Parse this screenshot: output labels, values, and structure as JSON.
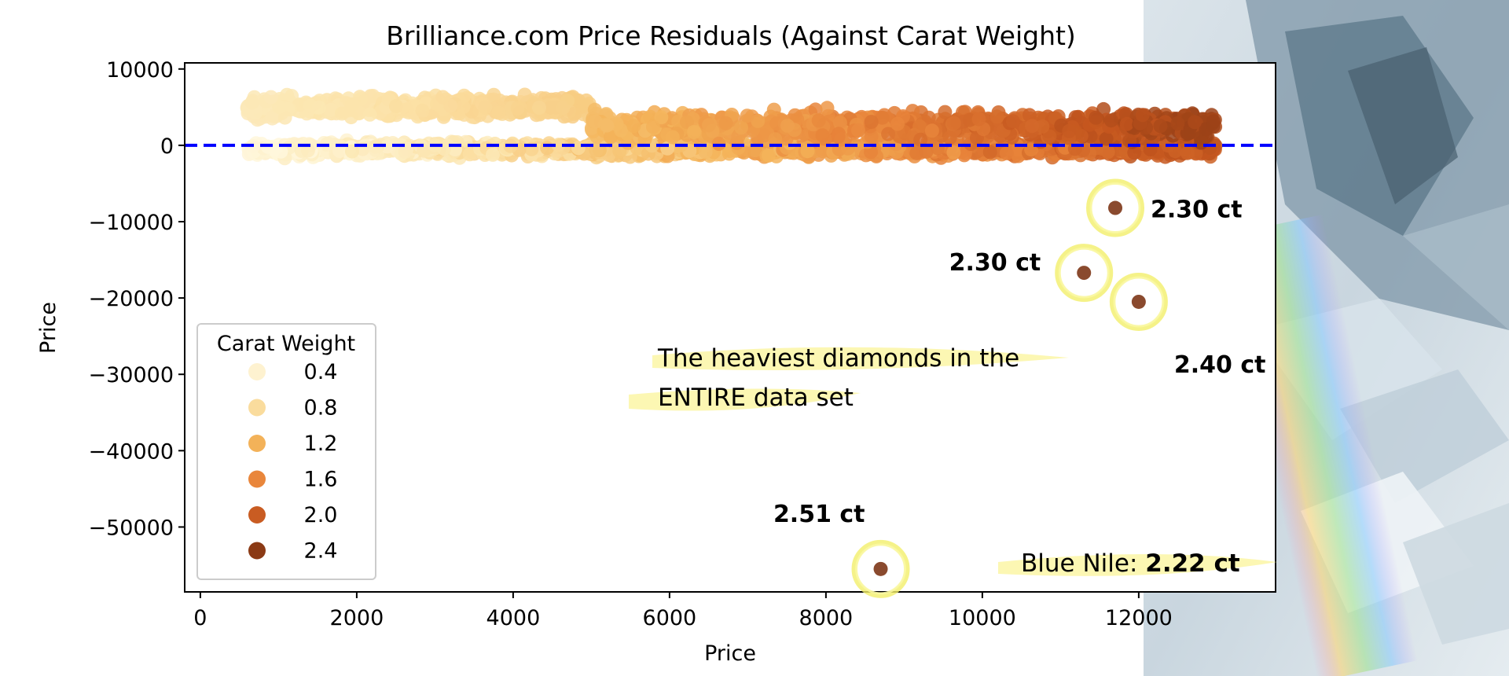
{
  "chart_data": {
    "type": "scatter",
    "title": "Brilliance.com Price Residuals (Against Carat Weight)",
    "xlabel": "Price",
    "ylabel": "Price",
    "xlim": [
      -200,
      13750
    ],
    "ylim": [
      -58500,
      10800
    ],
    "xticks": [
      0,
      2000,
      4000,
      6000,
      8000,
      10000,
      12000
    ],
    "yticks": [
      10000,
      0,
      -10000,
      -20000,
      -30000,
      -40000,
      -50000
    ],
    "tick_labels_x": [
      "0",
      "2000",
      "4000",
      "6000",
      "8000",
      "10000",
      "12000"
    ],
    "tick_labels_y": [
      "10000",
      "0",
      "−10000",
      "−20000",
      "−30000",
      "−40000",
      "−50000"
    ],
    "reference_line": {
      "y": 0,
      "style": "dashed",
      "color": "#0000ff"
    },
    "legend": {
      "title": "Carat Weight",
      "placement": "lower-left",
      "entries": [
        {
          "label": "0.4",
          "carat": 0.4
        },
        {
          "label": "0.8",
          "carat": 0.8
        },
        {
          "label": "1.2",
          "carat": 1.2
        },
        {
          "label": "1.6",
          "carat": 1.6
        },
        {
          "label": "2.0",
          "carat": 2.0
        },
        {
          "label": "2.4",
          "carat": 2.4
        }
      ]
    },
    "color_scale": {
      "stops": [
        "#fff7dc",
        "#fbe2a8",
        "#f4b45a",
        "#e8843a",
        "#c4561e",
        "#7a3212"
      ],
      "domain": [
        0.3,
        2.5
      ]
    },
    "bulk_bands": [
      {
        "x_from": 600,
        "x_to": 5000,
        "y_center": 5000,
        "y_spread": 1900,
        "carat_from": 0.6,
        "carat_to": 0.95
      },
      {
        "x_from": 600,
        "x_to": 13000,
        "y_center": -500,
        "y_spread": 1300,
        "carat_from": 0.3,
        "carat_to": 2.1
      },
      {
        "x_from": 5000,
        "x_to": 13000,
        "y_center": 2500,
        "y_spread": 2600,
        "carat_from": 1.1,
        "carat_to": 2.3
      }
    ],
    "highlighted_points": [
      {
        "x": 11700,
        "y": -8200,
        "carat": 2.3,
        "label": "2.30 ct"
      },
      {
        "x": 11300,
        "y": -16700,
        "carat": 2.3,
        "label": "2.30 ct"
      },
      {
        "x": 12000,
        "y": -20500,
        "carat": 2.4,
        "label": "2.40 ct"
      },
      {
        "x": 8700,
        "y": -55500,
        "carat": 2.51,
        "label": "2.51 ct"
      }
    ],
    "annotations": {
      "heaviest_line1": "The heaviest diamonds in the",
      "heaviest_line2": "ENTIRE data set",
      "blue_nile_prefix": "Blue Nile: ",
      "blue_nile_value": "2.22 ct"
    }
  }
}
